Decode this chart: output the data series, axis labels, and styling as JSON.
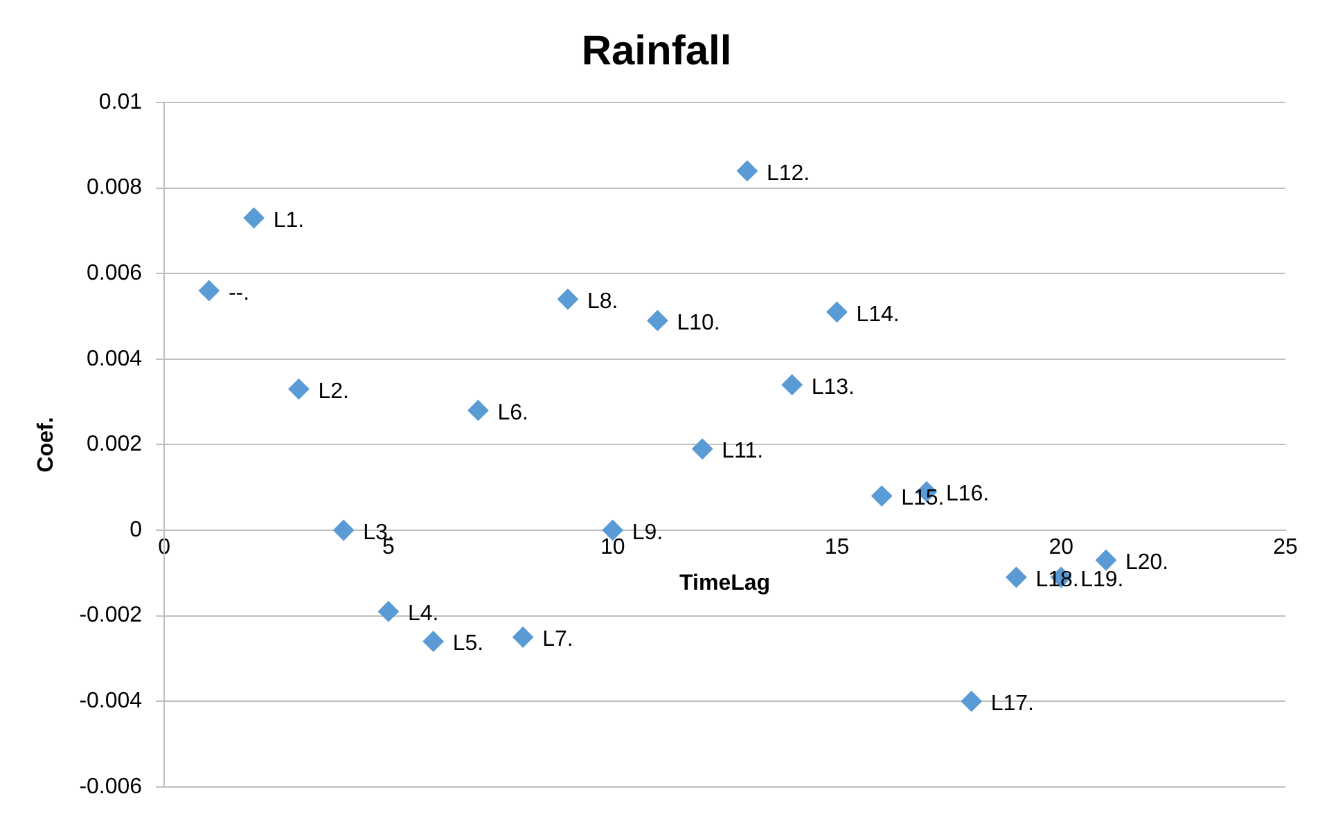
{
  "chart_data": {
    "type": "scatter",
    "title": "Rainfall",
    "xlabel": "TimeLag",
    "ylabel": "Coef.",
    "x": [
      1,
      2,
      3,
      4,
      5,
      6,
      7,
      8,
      9,
      10,
      11,
      12,
      13,
      14,
      15,
      16,
      17,
      18,
      19,
      20,
      21
    ],
    "series": [
      {
        "color": "#5b9bd5",
        "values": [
          0.0056,
          0.0073,
          0.0033,
          0.0,
          -0.0019,
          -0.0026,
          0.0028,
          -0.0025,
          0.0054,
          0.0,
          0.0049,
          0.0019,
          0.0084,
          0.0034,
          0.0051,
          0.0008,
          0.0009,
          -0.004,
          -0.0011,
          -0.0011,
          -0.0007
        ],
        "value_labels": [
          "--.",
          "L1.",
          "L2.",
          "L3.",
          "L4.",
          "L5.",
          "L6.",
          "L7.",
          "L8.",
          "L9.",
          "L10.",
          "L11.",
          "L12.",
          "L13.",
          "L14.",
          "L15.",
          "L16.",
          "L17.",
          "L18.",
          "L19.",
          "L20."
        ]
      }
    ],
    "xlim": [
      0,
      25
    ],
    "xticks": [
      0,
      5,
      10,
      15,
      20,
      25
    ],
    "ylim": [
      -0.006,
      0.01
    ],
    "yticks": [
      -0.006,
      -0.004,
      -0.002,
      0,
      0.002,
      0.004,
      0.006,
      0.008,
      0.01
    ],
    "grid": "y",
    "marker": "diamond",
    "legend": false
  }
}
